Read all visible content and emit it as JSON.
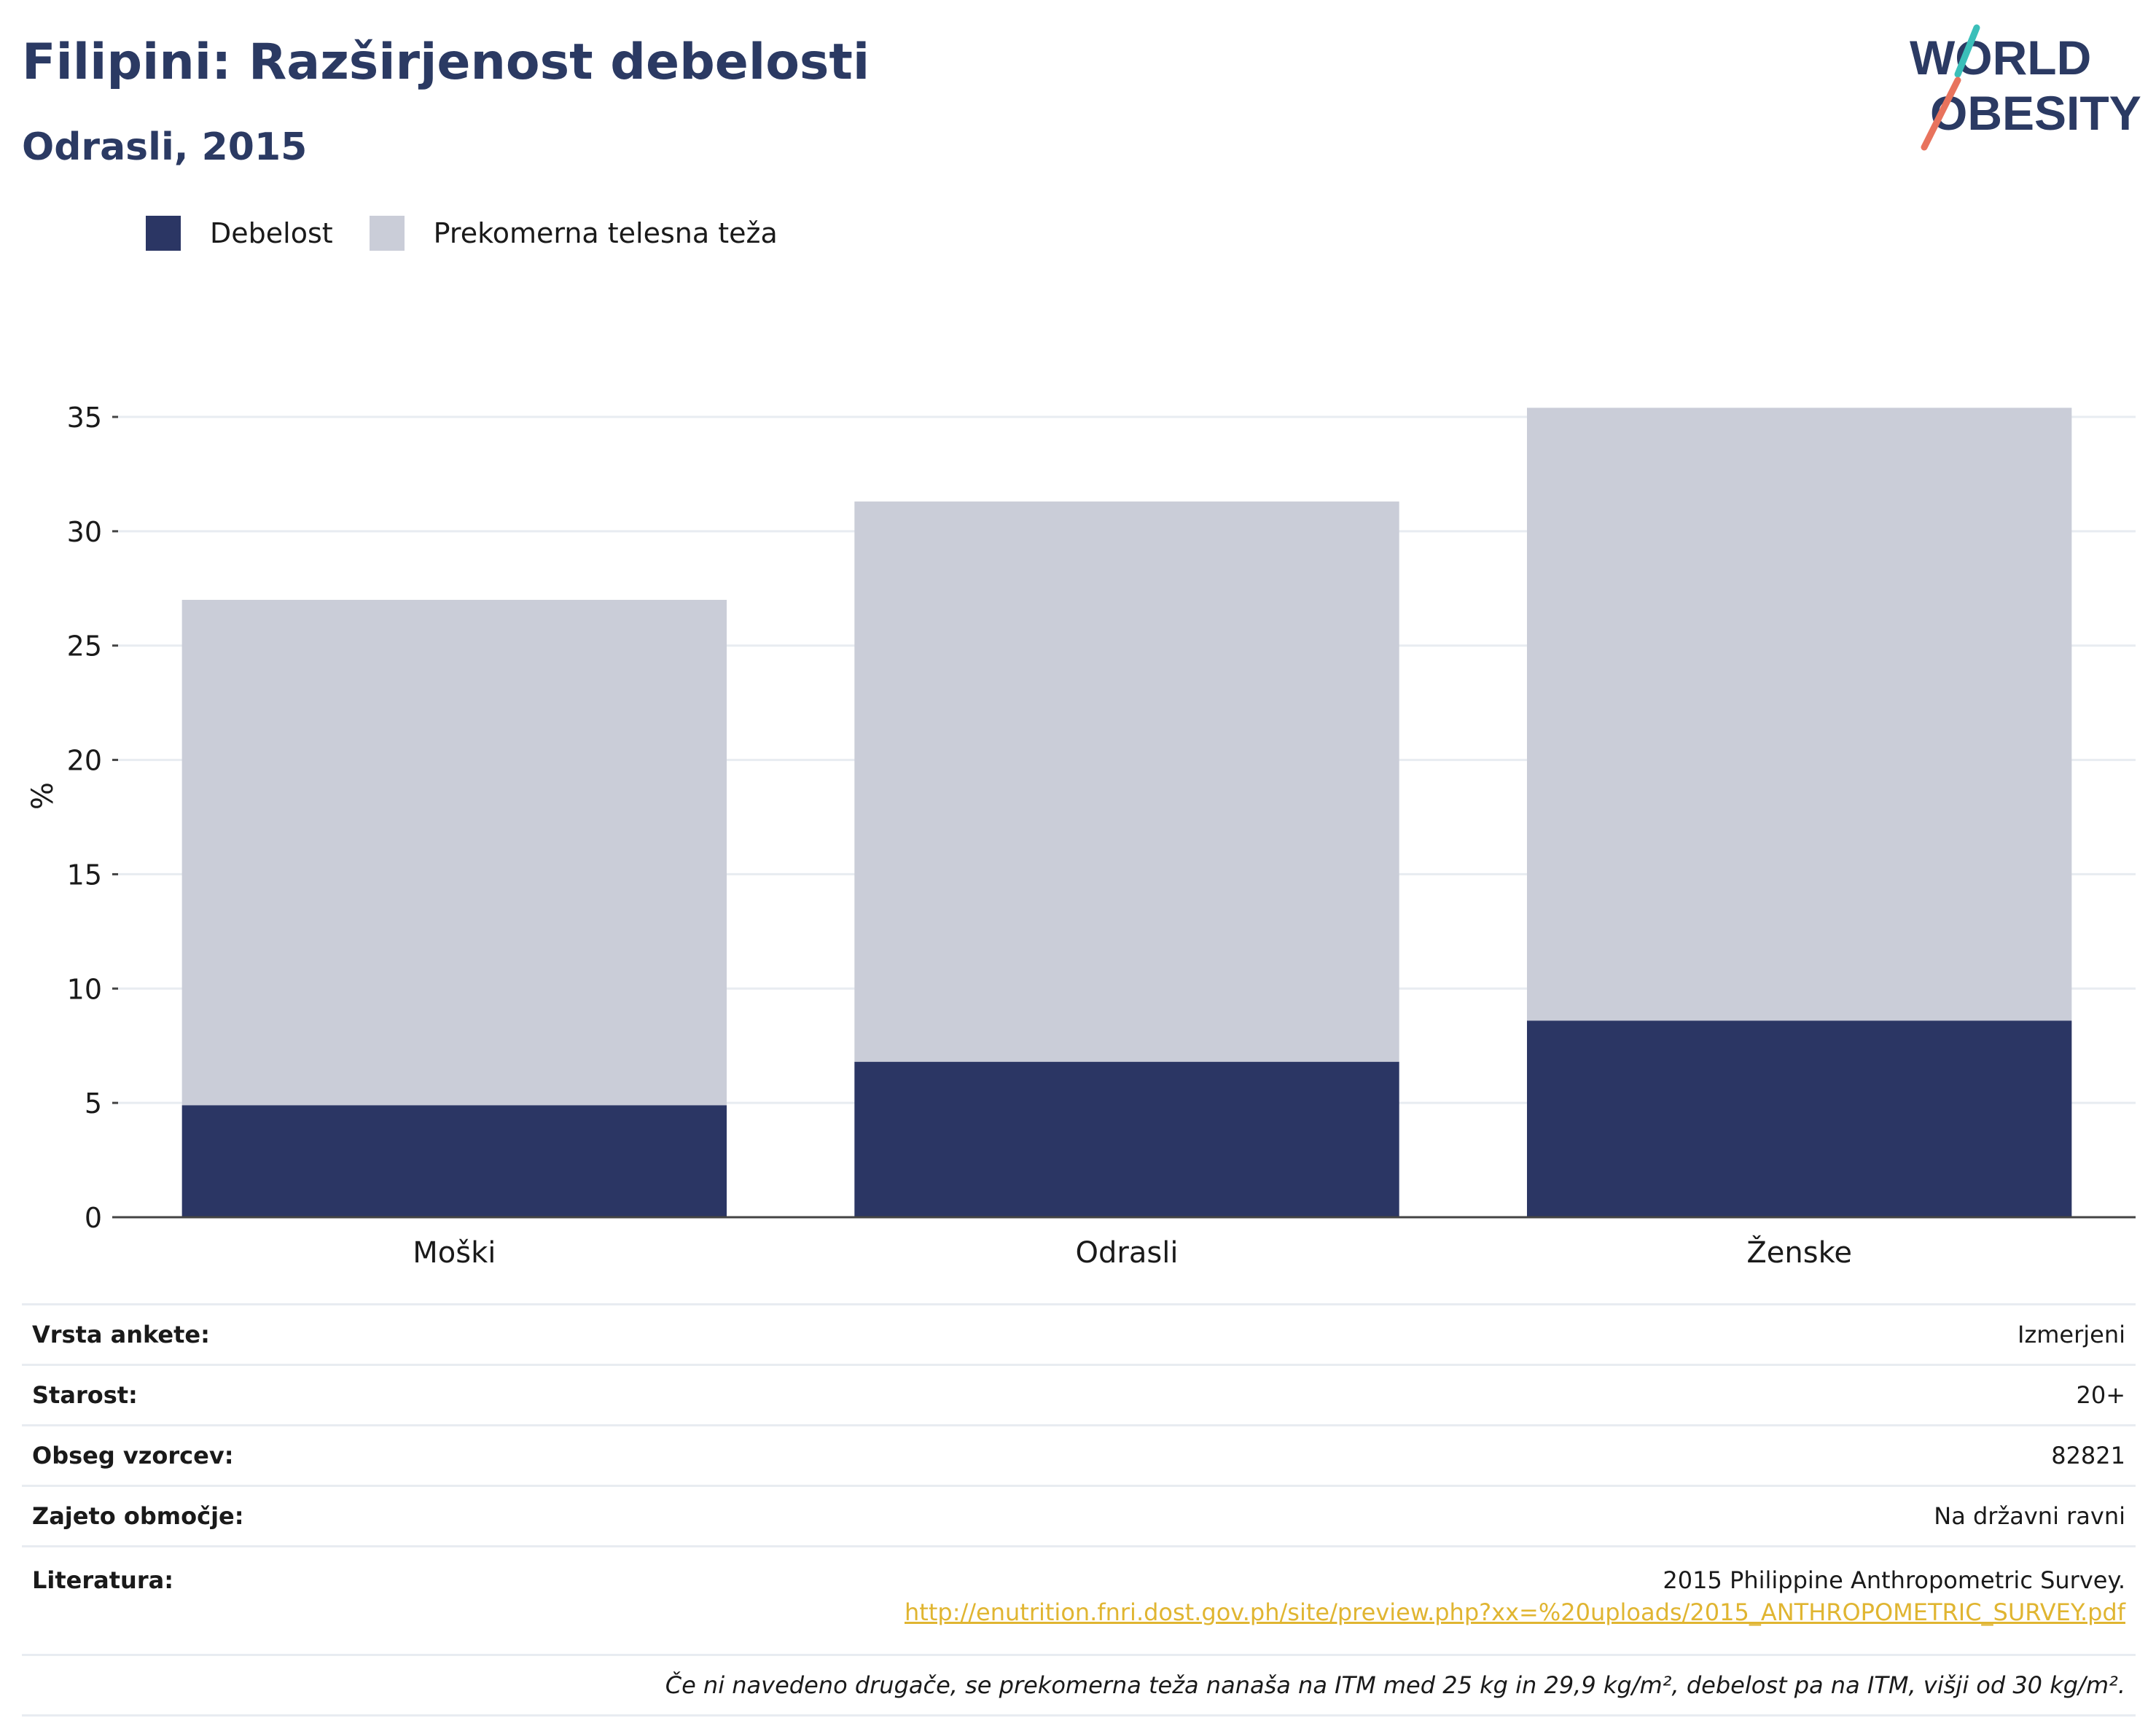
{
  "header": {
    "title": "Filipini: Razširjenost debelosti",
    "subtitle": "Odrasli, 2015"
  },
  "logo": {
    "line1": "WORLD",
    "line2": "OBESITY",
    "colors": {
      "text": "#2b3a63",
      "slash_top": "#3bbfb9",
      "slash_bottom": "#e8735d"
    }
  },
  "chart_data": {
    "type": "bar",
    "stacked": true,
    "categories": [
      "Moški",
      "Odrasli",
      "Ženske"
    ],
    "series": [
      {
        "name": "Debelost",
        "values": [
          4.9,
          6.8,
          8.6
        ],
        "color": "#2b3664"
      },
      {
        "name": "Prekomerna telesna teža",
        "values": [
          22.1,
          24.5,
          26.8
        ],
        "color": "#cacdd8"
      }
    ],
    "ylabel": "%",
    "xlabel": "",
    "ylim": [
      0,
      35
    ],
    "yticks": [
      0,
      5,
      10,
      15,
      20,
      25,
      30,
      35
    ],
    "grid": true,
    "legend_position": "top-left"
  },
  "info": {
    "rows": [
      {
        "label": "Vrsta ankete:",
        "value": "Izmerjeni"
      },
      {
        "label": "Starost:",
        "value": "20+"
      },
      {
        "label": "Obseg vzorcev:",
        "value": "82821"
      },
      {
        "label": "Zajeto območje:",
        "value": "Na državni ravni"
      }
    ],
    "literature": {
      "label": "Literatura:",
      "text": "2015 Philippine Anthropometric Survey.",
      "url": "http://enutrition.fnri.dost.gov.ph/site/preview.php?xx=%20uploads/2015_ANTHROPOMETRIC_SURVEY.pdf"
    },
    "note": "Če ni navedeno drugače, se prekomerna teža nanaša na ITM med 25 kg in 29,9 kg/m², debelost pa na ITM, višji od 30 kg/m²."
  }
}
